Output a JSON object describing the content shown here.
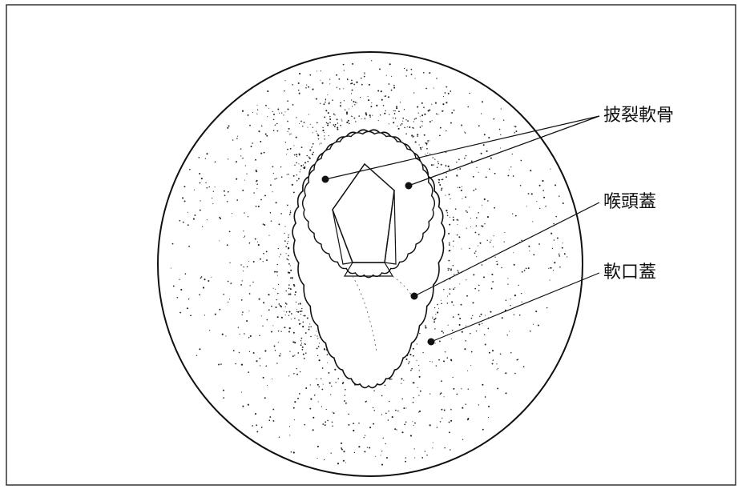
{
  "labels": [
    "披裂軟骨",
    "喉頭蓋",
    "軟口蓋"
  ]
}
